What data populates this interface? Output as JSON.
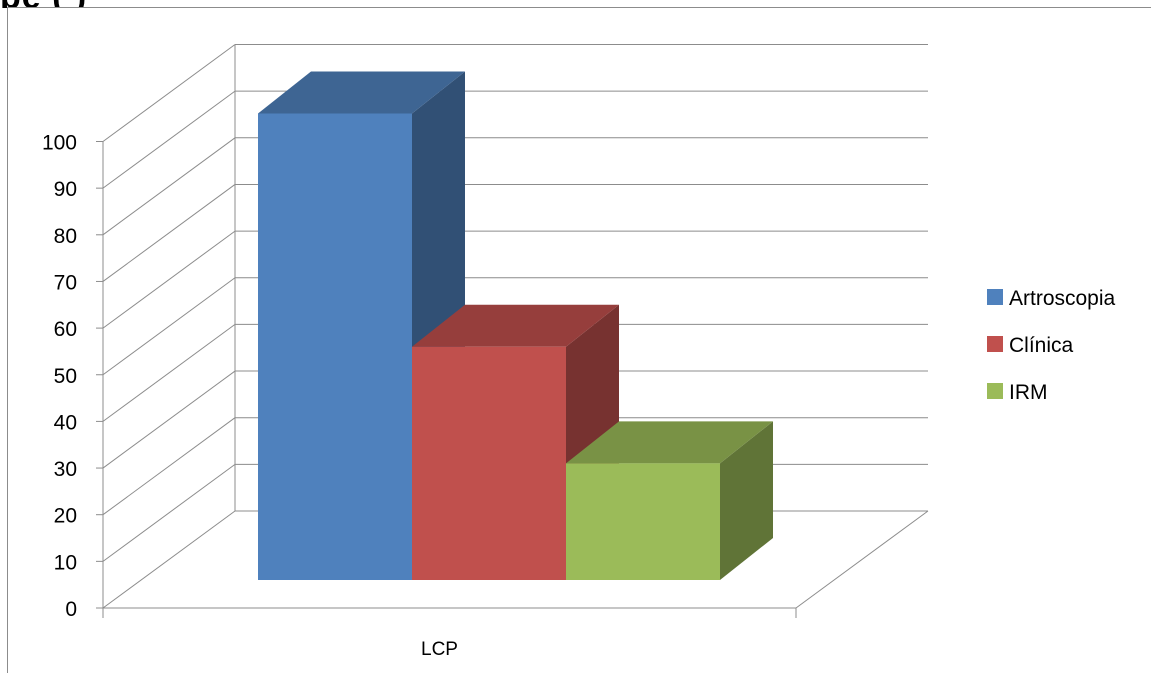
{
  "chart_data": {
    "type": "bar",
    "categories": [
      "LCP"
    ],
    "series": [
      {
        "name": "Artroscopia",
        "values": [
          100
        ],
        "color": "#4f81bd"
      },
      {
        "name": "Clínica",
        "values": [
          50
        ],
        "color": "#c0504d"
      },
      {
        "name": "IRM",
        "values": [
          25
        ],
        "color": "#9bbb59"
      }
    ],
    "ylim": [
      0,
      100
    ],
    "yticks": [
      "0",
      "10",
      "20",
      "30",
      "40",
      "50",
      "60",
      "70",
      "80",
      "90",
      "100"
    ],
    "style": "3d-column",
    "grid": true,
    "legend_position": "right"
  }
}
